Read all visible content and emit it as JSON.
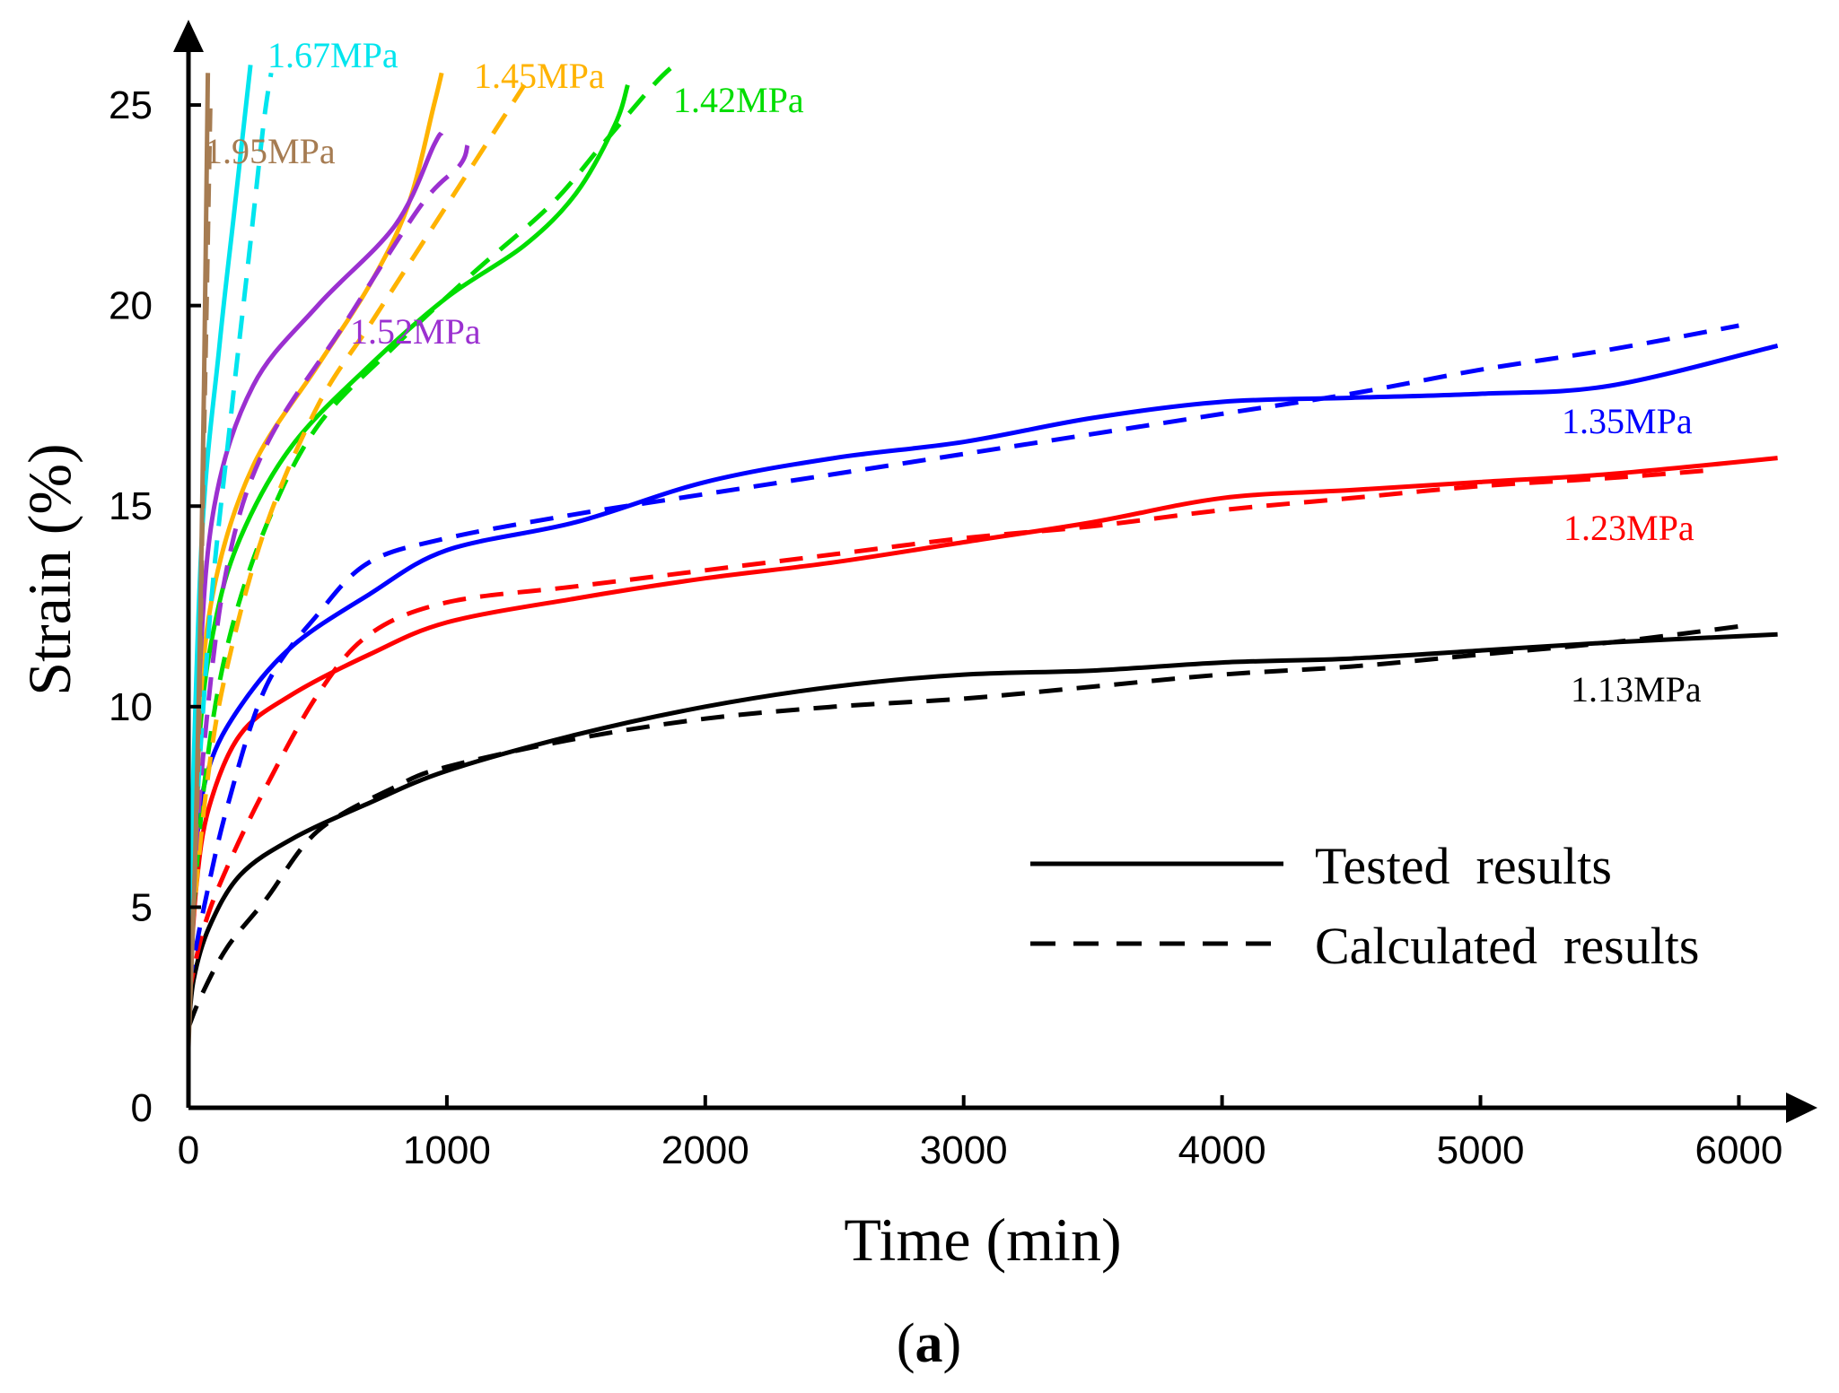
{
  "chart_data": {
    "type": "line",
    "title": "",
    "xlabel": "Time (min)",
    "ylabel": "Strain (%)",
    "xlim": [
      0,
      6200
    ],
    "ylim": [
      0,
      26.5
    ],
    "xticks": [
      0,
      1000,
      2000,
      3000,
      4000,
      5000,
      6000
    ],
    "yticks": [
      0,
      5,
      10,
      15,
      20,
      25
    ],
    "caption_open": "(",
    "caption_letter": "a",
    "caption_close": ")",
    "legend": {
      "solid": "Tested  results",
      "dashed": "Calculated  results",
      "position": "bottom-right"
    },
    "series": [
      {
        "name": "1.13MPa",
        "color": "#000000",
        "tested": [
          [
            0,
            1.9
          ],
          [
            20,
            3.2
          ],
          [
            80,
            4.5
          ],
          [
            200,
            5.8
          ],
          [
            400,
            6.7
          ],
          [
            700,
            7.6
          ],
          [
            1000,
            8.4
          ],
          [
            1500,
            9.3
          ],
          [
            2000,
            10.0
          ],
          [
            2500,
            10.5
          ],
          [
            3000,
            10.8
          ],
          [
            3500,
            10.9
          ],
          [
            4000,
            11.1
          ],
          [
            4500,
            11.2
          ],
          [
            5000,
            11.4
          ],
          [
            5500,
            11.6
          ],
          [
            6150,
            11.8
          ]
        ],
        "calculated": [
          [
            0,
            2.0
          ],
          [
            50,
            2.8
          ],
          [
            150,
            4.0
          ],
          [
            300,
            5.2
          ],
          [
            500,
            6.9
          ],
          [
            800,
            8.0
          ],
          [
            1000,
            8.5
          ],
          [
            1500,
            9.2
          ],
          [
            2000,
            9.7
          ],
          [
            2500,
            10.0
          ],
          [
            3000,
            10.2
          ],
          [
            3500,
            10.5
          ],
          [
            4000,
            10.8
          ],
          [
            4500,
            11.0
          ],
          [
            5000,
            11.3
          ],
          [
            5500,
            11.6
          ],
          [
            6000,
            12.0
          ]
        ]
      },
      {
        "name": "1.23MPa",
        "color": "#ff0000",
        "tested": [
          [
            0,
            2.5
          ],
          [
            30,
            5.5
          ],
          [
            80,
            7.5
          ],
          [
            200,
            9.3
          ],
          [
            400,
            10.3
          ],
          [
            700,
            11.3
          ],
          [
            1000,
            12.1
          ],
          [
            1500,
            12.7
          ],
          [
            2000,
            13.2
          ],
          [
            2500,
            13.6
          ],
          [
            3000,
            14.1
          ],
          [
            3500,
            14.6
          ],
          [
            4000,
            15.2
          ],
          [
            4500,
            15.4
          ],
          [
            5000,
            15.6
          ],
          [
            5500,
            15.8
          ],
          [
            6150,
            16.2
          ]
        ],
        "calculated": [
          [
            0,
            2.8
          ],
          [
            60,
            4.5
          ],
          [
            150,
            6.0
          ],
          [
            300,
            8.0
          ],
          [
            500,
            10.3
          ],
          [
            700,
            11.8
          ],
          [
            1000,
            12.6
          ],
          [
            1500,
            13.0
          ],
          [
            2000,
            13.4
          ],
          [
            2500,
            13.8
          ],
          [
            3000,
            14.2
          ],
          [
            3500,
            14.5
          ],
          [
            4000,
            14.9
          ],
          [
            4500,
            15.2
          ],
          [
            5000,
            15.5
          ],
          [
            5500,
            15.7
          ],
          [
            5900,
            15.9
          ]
        ]
      },
      {
        "name": "1.35MPa",
        "color": "#0000ff",
        "tested": [
          [
            0,
            2.8
          ],
          [
            30,
            6.5
          ],
          [
            80,
            8.5
          ],
          [
            200,
            10.0
          ],
          [
            400,
            11.5
          ],
          [
            700,
            12.8
          ],
          [
            1000,
            13.9
          ],
          [
            1500,
            14.6
          ],
          [
            2000,
            15.6
          ],
          [
            2500,
            16.2
          ],
          [
            3000,
            16.6
          ],
          [
            3500,
            17.2
          ],
          [
            4000,
            17.6
          ],
          [
            4500,
            17.7
          ],
          [
            5000,
            17.8
          ],
          [
            5500,
            18.0
          ],
          [
            6150,
            19.0
          ]
        ],
        "calculated": [
          [
            0,
            3.0
          ],
          [
            60,
            5.0
          ],
          [
            150,
            7.5
          ],
          [
            300,
            10.5
          ],
          [
            500,
            12.3
          ],
          [
            700,
            13.6
          ],
          [
            1000,
            14.2
          ],
          [
            1500,
            14.8
          ],
          [
            2000,
            15.3
          ],
          [
            2500,
            15.8
          ],
          [
            3000,
            16.3
          ],
          [
            3500,
            16.8
          ],
          [
            4000,
            17.3
          ],
          [
            4500,
            17.8
          ],
          [
            5000,
            18.4
          ],
          [
            5500,
            18.9
          ],
          [
            6000,
            19.5
          ]
        ]
      },
      {
        "name": "1.42MPa",
        "color": "#00dd00",
        "tested": [
          [
            0,
            3.0
          ],
          [
            40,
            9.0
          ],
          [
            100,
            12.0
          ],
          [
            200,
            14.2
          ],
          [
            400,
            16.5
          ],
          [
            700,
            18.5
          ],
          [
            1000,
            20.2
          ],
          [
            1300,
            21.5
          ],
          [
            1500,
            22.8
          ],
          [
            1650,
            24.5
          ],
          [
            1700,
            25.5
          ]
        ],
        "calculated": [
          [
            0,
            3.2
          ],
          [
            60,
            8.0
          ],
          [
            150,
            11.5
          ],
          [
            300,
            14.5
          ],
          [
            500,
            17.0
          ],
          [
            800,
            19.0
          ],
          [
            1100,
            20.8
          ],
          [
            1400,
            22.5
          ],
          [
            1600,
            24.0
          ],
          [
            1800,
            25.5
          ],
          [
            1880,
            26.0
          ]
        ]
      },
      {
        "name": "1.45MPa",
        "color": "#ffb300",
        "tested": [
          [
            0,
            3.2
          ],
          [
            40,
            9.5
          ],
          [
            100,
            13.0
          ],
          [
            250,
            16.0
          ],
          [
            500,
            18.5
          ],
          [
            700,
            20.5
          ],
          [
            850,
            22.5
          ],
          [
            950,
            25.0
          ],
          [
            980,
            25.8
          ]
        ],
        "calculated": [
          [
            0,
            3.5
          ],
          [
            70,
            8.0
          ],
          [
            150,
            11.0
          ],
          [
            300,
            14.5
          ],
          [
            500,
            17.5
          ],
          [
            700,
            19.5
          ],
          [
            900,
            21.5
          ],
          [
            1050,
            23.0
          ],
          [
            1200,
            24.5
          ],
          [
            1300,
            25.5
          ]
        ]
      },
      {
        "name": "1.52MPa",
        "color": "#9b30d0",
        "tested": [
          [
            0,
            3.4
          ],
          [
            40,
            10.5
          ],
          [
            100,
            15.0
          ],
          [
            250,
            18.0
          ],
          [
            500,
            20.0
          ],
          [
            800,
            22.0
          ],
          [
            950,
            24.0
          ],
          [
            980,
            24.3
          ]
        ],
        "calculated": [
          [
            0,
            3.6
          ],
          [
            60,
            9.0
          ],
          [
            150,
            13.5
          ],
          [
            300,
            16.5
          ],
          [
            600,
            19.5
          ],
          [
            900,
            22.5
          ],
          [
            1050,
            23.5
          ],
          [
            1080,
            24.0
          ]
        ]
      },
      {
        "name": "1.67MPa",
        "color": "#00e5ee",
        "tested": [
          [
            0,
            4.0
          ],
          [
            50,
            14.0
          ],
          [
            120,
            19.0
          ],
          [
            180,
            22.5
          ],
          [
            240,
            26.0
          ]
        ],
        "calculated": [
          [
            0,
            4.2
          ],
          [
            80,
            12.0
          ],
          [
            160,
            17.0
          ],
          [
            230,
            21.0
          ],
          [
            290,
            24.5
          ],
          [
            320,
            25.8
          ]
        ]
      },
      {
        "name": "1.95MPa",
        "color": "#a67c52",
        "tested": [
          [
            0,
            1.5
          ],
          [
            25,
            6.0
          ],
          [
            45,
            12.0
          ],
          [
            60,
            18.0
          ],
          [
            75,
            25.8
          ]
        ],
        "calculated": [
          [
            0,
            1.8
          ],
          [
            35,
            8.0
          ],
          [
            55,
            15.0
          ],
          [
            70,
            20.0
          ],
          [
            85,
            25.2
          ]
        ]
      }
    ],
    "labels": [
      {
        "text": "1.13MPa",
        "color": "#000000",
        "size": "small"
      },
      {
        "text": "1.23MPa",
        "color": "#ff0000",
        "size": "normal"
      },
      {
        "text": "1.35MPa",
        "color": "#0000ff",
        "size": "normal"
      },
      {
        "text": "1.42MPa",
        "color": "#00dd00",
        "size": "normal"
      },
      {
        "text": "1.45MPa",
        "color": "#ffb300",
        "size": "normal"
      },
      {
        "text": "1.52MPa",
        "color": "#9b30d0",
        "size": "normal"
      },
      {
        "text": "1.67MPa",
        "color": "#00e5ee",
        "size": "normal"
      },
      {
        "text": "1.95MPa",
        "color": "#a67c52",
        "size": "normal"
      }
    ]
  }
}
